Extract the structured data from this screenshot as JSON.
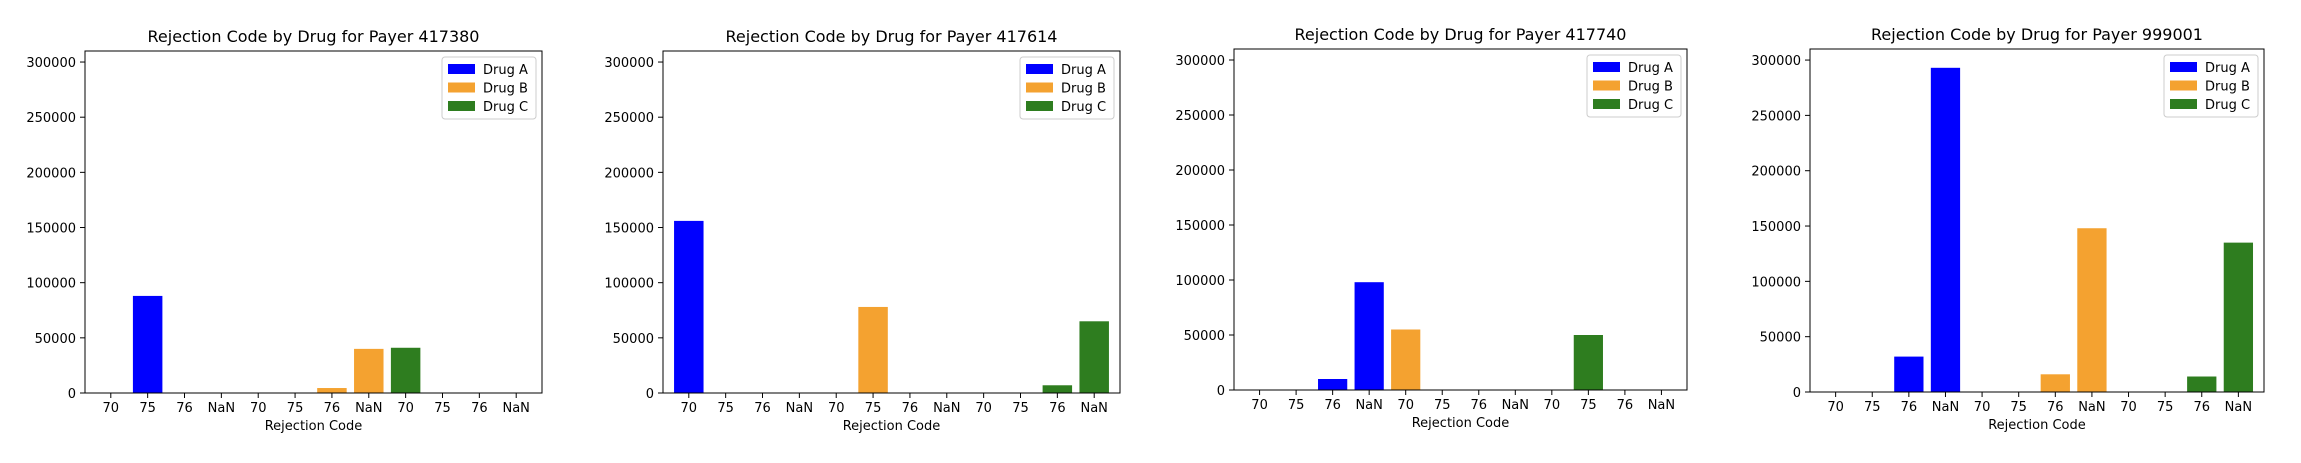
{
  "figure": {
    "colors": {
      "Drug A": "#0000ff",
      "Drug B": "#f4a230",
      "Drug C": "#2e7d1f"
    }
  },
  "chart_data": [
    {
      "type": "bar",
      "title": "Rejection Code by Drug for Payer 417380",
      "xlabel": "Rejection Code",
      "ylabel": "",
      "ylim": [
        0,
        310000
      ],
      "yticks": [
        0,
        50000,
        100000,
        150000,
        200000,
        250000,
        300000
      ],
      "legend_position": "top-right",
      "categories": [
        "70",
        "75",
        "76",
        "NaN",
        "70",
        "75",
        "76",
        "NaN",
        "70",
        "75",
        "76",
        "NaN"
      ],
      "series": [
        {
          "name": "Drug A",
          "values": [
            0,
            88000,
            0,
            0,
            null,
            null,
            null,
            null,
            null,
            null,
            null,
            null
          ]
        },
        {
          "name": "Drug B",
          "values": [
            null,
            null,
            null,
            null,
            0,
            0,
            4500,
            40000,
            null,
            null,
            null,
            null
          ]
        },
        {
          "name": "Drug C",
          "values": [
            null,
            null,
            null,
            null,
            null,
            null,
            null,
            null,
            41000,
            0,
            0,
            0
          ]
        }
      ]
    },
    {
      "type": "bar",
      "title": "Rejection Code by Drug for Payer 417614",
      "xlabel": "Rejection Code",
      "ylabel": "",
      "ylim": [
        0,
        310000
      ],
      "yticks": [
        0,
        50000,
        100000,
        150000,
        200000,
        250000,
        300000
      ],
      "legend_position": "top-right",
      "categories": [
        "70",
        "75",
        "76",
        "NaN",
        "70",
        "75",
        "76",
        "NaN",
        "70",
        "75",
        "76",
        "NaN"
      ],
      "series": [
        {
          "name": "Drug A",
          "values": [
            156000,
            0,
            0,
            0,
            null,
            null,
            null,
            null,
            null,
            null,
            null,
            null
          ]
        },
        {
          "name": "Drug B",
          "values": [
            null,
            null,
            null,
            null,
            0,
            78000,
            0,
            0,
            null,
            null,
            null,
            null
          ]
        },
        {
          "name": "Drug C",
          "values": [
            null,
            null,
            null,
            null,
            null,
            null,
            null,
            null,
            0,
            0,
            7000,
            65000
          ]
        }
      ]
    },
    {
      "type": "bar",
      "title": "Rejection Code by Drug for Payer 417740",
      "xlabel": "Rejection Code",
      "ylabel": "",
      "ylim": [
        0,
        310000
      ],
      "yticks": [
        0,
        50000,
        100000,
        150000,
        200000,
        250000,
        300000
      ],
      "legend_position": "top-right",
      "categories": [
        "70",
        "75",
        "76",
        "NaN",
        "70",
        "75",
        "76",
        "NaN",
        "70",
        "75",
        "76",
        "NaN"
      ],
      "series": [
        {
          "name": "Drug A",
          "values": [
            0,
            0,
            10000,
            98000,
            null,
            null,
            null,
            null,
            null,
            null,
            null,
            null
          ]
        },
        {
          "name": "Drug B",
          "values": [
            null,
            null,
            null,
            null,
            55000,
            0,
            0,
            0,
            null,
            null,
            null,
            null
          ]
        },
        {
          "name": "Drug C",
          "values": [
            null,
            null,
            null,
            null,
            null,
            null,
            null,
            null,
            0,
            50000,
            0,
            0
          ]
        }
      ]
    },
    {
      "type": "bar",
      "title": "Rejection Code by Drug for Payer 999001",
      "xlabel": "Rejection Code",
      "ylabel": "",
      "ylim": [
        0,
        310000
      ],
      "yticks": [
        0,
        50000,
        100000,
        150000,
        200000,
        250000,
        300000
      ],
      "legend_position": "top-right",
      "categories": [
        "70",
        "75",
        "76",
        "NaN",
        "70",
        "75",
        "76",
        "NaN",
        "70",
        "75",
        "76",
        "NaN"
      ],
      "series": [
        {
          "name": "Drug A",
          "values": [
            0,
            0,
            32000,
            293000,
            null,
            null,
            null,
            null,
            null,
            null,
            null,
            null
          ]
        },
        {
          "name": "Drug B",
          "values": [
            null,
            null,
            null,
            null,
            0,
            0,
            16000,
            148000,
            null,
            null,
            null,
            null
          ]
        },
        {
          "name": "Drug C",
          "values": [
            null,
            null,
            null,
            null,
            null,
            null,
            null,
            null,
            0,
            0,
            14000,
            135000
          ]
        }
      ]
    }
  ]
}
